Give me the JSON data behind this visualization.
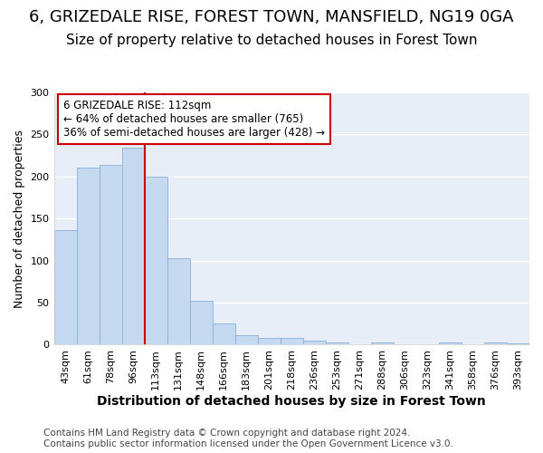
{
  "title": "6, GRIZEDALE RISE, FOREST TOWN, MANSFIELD, NG19 0GA",
  "subtitle": "Size of property relative to detached houses in Forest Town",
  "xlabel": "Distribution of detached houses by size in Forest Town",
  "ylabel": "Number of detached properties",
  "categories": [
    "43sqm",
    "61sqm",
    "78sqm",
    "96sqm",
    "113sqm",
    "131sqm",
    "148sqm",
    "166sqm",
    "183sqm",
    "201sqm",
    "218sqm",
    "236sqm",
    "253sqm",
    "271sqm",
    "288sqm",
    "306sqm",
    "323sqm",
    "341sqm",
    "358sqm",
    "376sqm",
    "393sqm"
  ],
  "values": [
    136,
    211,
    214,
    234,
    200,
    103,
    52,
    25,
    11,
    8,
    8,
    5,
    3,
    0,
    3,
    0,
    0,
    3,
    0,
    3,
    2
  ],
  "bar_color": "#c5d9f1",
  "bar_edge_color": "#8ab0d8",
  "red_line_index": 4,
  "property_label": "6 GRIZEDALE RISE: 112sqm",
  "annotation_line1": "← 64% of detached houses are smaller (765)",
  "annotation_line2": "36% of semi-detached houses are larger (428) →",
  "annotation_box_facecolor": "#ffffff",
  "annotation_box_edgecolor": "#cc0000",
  "red_line_color": "#cc0000",
  "ylim": [
    0,
    300
  ],
  "yticks": [
    0,
    50,
    100,
    150,
    200,
    250,
    300
  ],
  "footer_line1": "Contains HM Land Registry data © Crown copyright and database right 2024.",
  "footer_line2": "Contains public sector information licensed under the Open Government Licence v3.0.",
  "page_bg_color": "#ffffff",
  "axes_bg_color": "#e8eef8",
  "grid_color": "#ffffff",
  "title_fontsize": 13,
  "subtitle_fontsize": 11,
  "tick_fontsize": 8,
  "ylabel_fontsize": 9,
  "xlabel_fontsize": 10,
  "footer_fontsize": 7.5,
  "annotation_fontsize": 8.5
}
